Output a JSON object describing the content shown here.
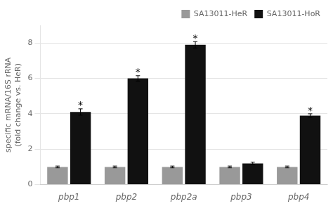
{
  "chart_data": {
    "type": "bar",
    "categories": [
      "pbp1",
      "pbp2",
      "pbp2a",
      "pbp3",
      "pbp4"
    ],
    "series": [
      {
        "name": "SA13011-HeR",
        "color": "#999999",
        "values": [
          1.0,
          1.0,
          1.0,
          1.0,
          1.0
        ],
        "errors": [
          0.05,
          0.05,
          0.05,
          0.05,
          0.05
        ]
      },
      {
        "name": "SA13011-HoR",
        "color": "#111111",
        "values": [
          4.1,
          6.0,
          7.9,
          1.2,
          3.9
        ],
        "errors": [
          0.18,
          0.15,
          0.18,
          0.07,
          0.1
        ]
      }
    ],
    "ylabel": "specific mRNA/16S rRNA\n(fold change vs. HeR)",
    "ylim": [
      0,
      9
    ],
    "yticks": [
      0,
      2,
      4,
      6,
      8
    ],
    "grid": true,
    "legend": "upper right",
    "annotations": [
      {
        "text": "*",
        "category": "pbp1",
        "series": "SA13011-HoR"
      },
      {
        "text": "*",
        "category": "pbp2",
        "series": "SA13011-HoR"
      },
      {
        "text": "*",
        "category": "pbp2a",
        "series": "SA13011-HoR"
      },
      {
        "text": "*",
        "category": "pbp4",
        "series": "SA13011-HoR"
      }
    ]
  }
}
